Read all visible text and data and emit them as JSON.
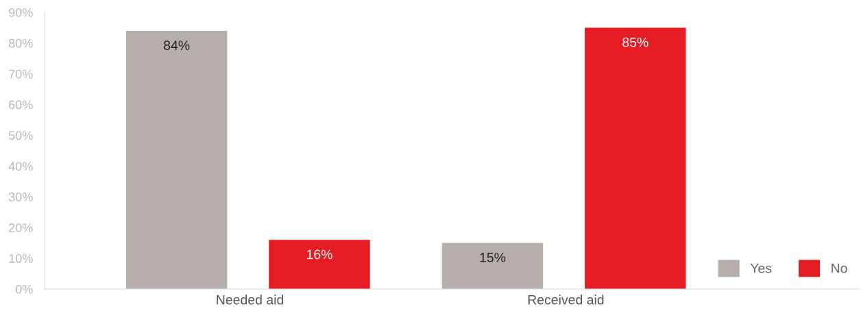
{
  "chart_data": {
    "type": "bar",
    "categories": [
      "Needed aid",
      "Received aid"
    ],
    "series": [
      {
        "name": "Yes",
        "color": "#b5aeab",
        "values": [
          84,
          15
        ],
        "value_labels": [
          "84%",
          "15%"
        ]
      },
      {
        "name": "No",
        "color": "#e61c24",
        "values": [
          16,
          85
        ],
        "value_labels": [
          "16%",
          "85%"
        ]
      }
    ],
    "ylim": [
      0,
      90
    ],
    "yticks": [
      {
        "value": 0,
        "label": "0%"
      },
      {
        "value": 10,
        "label": "10%"
      },
      {
        "value": 20,
        "label": "20%"
      },
      {
        "value": 30,
        "label": "30%"
      },
      {
        "value": 40,
        "label": "40%"
      },
      {
        "value": 50,
        "label": "50%"
      },
      {
        "value": 60,
        "label": "60%"
      },
      {
        "value": 70,
        "label": "70%"
      },
      {
        "value": 80,
        "label": "80%"
      },
      {
        "value": 90,
        "label": "90%"
      }
    ],
    "grid": false,
    "legend": "bottom right"
  }
}
